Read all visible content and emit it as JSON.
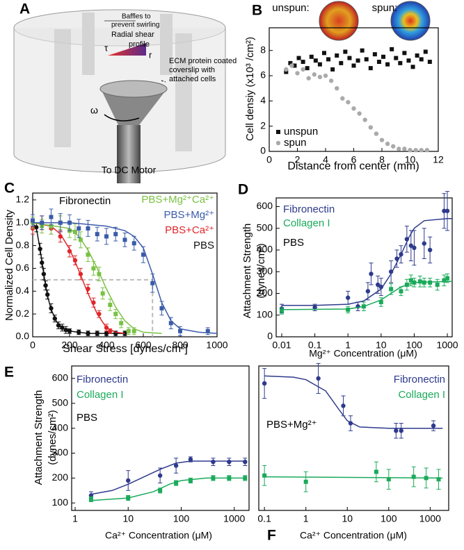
{
  "diagram": {
    "panel": "A",
    "baffles": [
      "Baffles to",
      "prevent swirling"
    ],
    "shear_profile": [
      "Radial shear",
      "profile"
    ],
    "tau": "τ",
    "r": "r",
    "ecm_label": [
      "ECM protein coated",
      "coverslip with",
      "attached cells"
    ],
    "omega": "ω",
    "motor": "To DC Motor"
  },
  "chart_data": [
    {
      "panel": "B",
      "type": "scatter",
      "xlabel": "Distance from center (mm)",
      "ylabel": "Cell densiy (x10³ /cm²)",
      "annotations": [
        "unspun:",
        "spun:"
      ],
      "xlim": [
        0,
        12
      ],
      "xticks": [
        0,
        2,
        4,
        6,
        8,
        10,
        12
      ],
      "ylim": [
        0,
        9.8
      ],
      "yticks": [
        0,
        2,
        4,
        6,
        8
      ],
      "series": [
        {
          "name": "unspun",
          "color": "#111111",
          "marker": "square",
          "x": [
            1.2,
            1.5,
            1.8,
            2.1,
            2.4,
            2.7,
            3.0,
            3.3,
            3.6,
            3.9,
            4.2,
            4.5,
            4.8,
            5.1,
            5.4,
            5.7,
            6.0,
            6.3,
            6.6,
            6.9,
            7.2,
            7.5,
            7.8,
            8.1,
            8.4,
            8.7,
            9.0,
            9.3,
            9.6,
            9.9,
            10.2,
            10.5,
            10.8,
            11.1,
            11.4
          ],
          "values": [
            6.3,
            7.0,
            6.8,
            7.4,
            7.1,
            6.6,
            7.5,
            7.2,
            6.9,
            7.8,
            7.3,
            6.5,
            7.6,
            7.0,
            7.9,
            7.4,
            6.8,
            7.2,
            8.0,
            7.3,
            6.6,
            7.7,
            7.1,
            7.5,
            6.9,
            8.1,
            7.4,
            7.0,
            7.8,
            7.2,
            6.7,
            7.6,
            7.3,
            7.9,
            7.1
          ]
        },
        {
          "name": "spun",
          "color": "#aaaaaa",
          "marker": "circle",
          "x": [
            1.2,
            1.6,
            2.0,
            2.4,
            2.8,
            3.2,
            3.6,
            4.0,
            4.4,
            4.8,
            5.2,
            5.6,
            6.0,
            6.4,
            6.8,
            7.2,
            7.6,
            8.0,
            8.4,
            8.8,
            9.2,
            9.6,
            10.0,
            10.4,
            10.8,
            11.2
          ],
          "values": [
            6.5,
            6.8,
            6.2,
            6.5,
            5.8,
            6.1,
            5.9,
            6.0,
            5.6,
            5.0,
            4.2,
            3.9,
            3.4,
            3.0,
            2.5,
            1.9,
            1.4,
            0.9,
            0.6,
            0.4,
            0.2,
            0.2,
            0.1,
            0.1,
            0.1,
            0.1
          ]
        }
      ]
    },
    {
      "panel": "C",
      "type": "scatter",
      "xlabel": "Shear Stress [dynes/cm²]",
      "ylabel": "Normalized Cell Density",
      "annotations": [
        "Fibronectin"
      ],
      "xlim": [
        0,
        1000
      ],
      "xticks": [
        0,
        200,
        400,
        600,
        800,
        1000
      ],
      "ylim": [
        0,
        1.26
      ],
      "yticks": [
        {
          "value": 0,
          "label": "0.0"
        },
        0.2,
        0.4,
        0.6,
        0.8,
        {
          "value": 1,
          "label": "1.0"
        },
        1.2
      ],
      "guide": {
        "x": 650,
        "y": 0.5
      },
      "series": [
        {
          "name": "PBS",
          "color": "#111111",
          "marker": "circle",
          "x": [
            0,
            20,
            40,
            50,
            60,
            70,
            80,
            100,
            120,
            140,
            160,
            180,
            200,
            250,
            300,
            350,
            400,
            450,
            500
          ],
          "values": [
            1.0,
            0.96,
            0.77,
            0.65,
            0.55,
            0.45,
            0.37,
            0.25,
            0.16,
            0.1,
            0.08,
            0.06,
            0.05,
            0.04,
            0.03,
            0.03,
            0.03,
            0.03,
            0.03
          ],
          "errors": [
            0.03,
            0.04,
            0.05,
            0.04,
            0.05,
            0.04,
            0.04,
            0.04,
            0.03,
            0.03,
            0.03,
            0.03,
            0.02,
            0.02,
            0.02,
            0.02,
            0.02,
            0.02,
            0.02
          ],
          "fit": {
            "x": [
              0,
              20,
              40,
              60,
              80,
              100,
              130,
              160,
              200,
              300,
              500
            ],
            "values": [
              1.0,
              0.95,
              0.77,
              0.55,
              0.36,
              0.24,
              0.13,
              0.08,
              0.05,
              0.03,
              0.03
            ]
          }
        },
        {
          "name": "PBS+Ca²⁺",
          "color": "#e0262a",
          "marker": "circle",
          "x": [
            0,
            50,
            100,
            150,
            200,
            230,
            260,
            300,
            330,
            360,
            400,
            420
          ],
          "values": [
            0.95,
            1.0,
            0.95,
            0.88,
            0.75,
            0.67,
            0.55,
            0.42,
            0.3,
            0.2,
            0.08,
            0.05
          ],
          "errors": [
            0.05,
            0.06,
            0.05,
            0.05,
            0.05,
            0.04,
            0.05,
            0.04,
            0.04,
            0.03,
            0.03,
            0.02
          ],
          "fit": {
            "x": [
              0,
              100,
              150,
              200,
              250,
              300,
              350,
              400,
              450,
              500
            ],
            "values": [
              1.0,
              0.97,
              0.9,
              0.77,
              0.58,
              0.38,
              0.2,
              0.08,
              0.04,
              0.03
            ]
          }
        },
        {
          "name": "PBS+Mg²⁺Ca²⁺",
          "color": "#7ac143",
          "marker": "square",
          "x": [
            0,
            50,
            100,
            150,
            200,
            230,
            260,
            300,
            330,
            360,
            380,
            420,
            450,
            480,
            520,
            550
          ],
          "values": [
            1.0,
            0.97,
            0.97,
            1.0,
            0.93,
            0.92,
            0.85,
            0.72,
            0.6,
            0.55,
            0.38,
            0.28,
            0.2,
            0.12,
            0.05,
            0.05
          ],
          "errors": [
            0.05,
            0.06,
            0.07,
            0.06,
            0.06,
            0.07,
            0.07,
            0.06,
            0.06,
            0.06,
            0.05,
            0.05,
            0.04,
            0.04,
            0.03,
            0.03
          ],
          "fit": {
            "x": [
              0,
              200,
              250,
              300,
              350,
              400,
              450,
              500,
              550,
              600,
              700
            ],
            "values": [
              1.0,
              0.95,
              0.88,
              0.76,
              0.6,
              0.42,
              0.26,
              0.14,
              0.07,
              0.04,
              0.03
            ]
          }
        },
        {
          "name": "PBS+Mg²⁺",
          "color": "#3a5ba9",
          "marker": "square",
          "x": [
            0,
            50,
            100,
            150,
            200,
            250,
            300,
            350,
            400,
            450,
            500,
            550,
            600,
            650,
            700,
            750,
            800,
            950
          ],
          "values": [
            1.02,
            1.0,
            1.05,
            1.0,
            1.0,
            0.95,
            0.95,
            0.9,
            0.88,
            0.9,
            0.85,
            0.82,
            0.72,
            0.47,
            0.25,
            0.12,
            0.05,
            0.05
          ],
          "errors": [
            0.05,
            0.06,
            0.07,
            0.08,
            0.07,
            0.08,
            0.07,
            0.06,
            0.07,
            0.06,
            0.06,
            0.06,
            0.07,
            0.08,
            0.06,
            0.05,
            0.04,
            0.03
          ],
          "fit": {
            "x": [
              0,
              200,
              400,
              500,
              550,
              600,
              650,
              700,
              750,
              800,
              900,
              1000
            ],
            "values": [
              1.0,
              1.0,
              0.97,
              0.93,
              0.88,
              0.78,
              0.55,
              0.3,
              0.14,
              0.07,
              0.04,
              0.03
            ]
          }
        }
      ]
    },
    {
      "panel": "D",
      "type": "scatter",
      "xscale": "log",
      "xlabel": "Mg²⁺ Concentration (μM)",
      "ylabel": [
        "Attachment Strength",
        "(dynes/cm²)"
      ],
      "annotations": [
        "PBS"
      ],
      "xlim": [
        0.0068,
        1400
      ],
      "xticks": [
        0.01,
        0.1,
        1,
        10,
        100,
        1000
      ],
      "ylim": [
        0,
        640
      ],
      "yticks": [
        0,
        100,
        200,
        300,
        400,
        500,
        600
      ],
      "series": [
        {
          "name": "Fibronectin",
          "color": "#2e3a8c",
          "marker": "circle",
          "x": [
            0.01,
            0.1,
            1,
            2,
            4,
            5,
            8,
            10,
            20,
            30,
            40,
            60,
            80,
            100,
            200,
            300,
            800,
            1000
          ],
          "values": [
            130,
            135,
            180,
            140,
            210,
            290,
            240,
            230,
            300,
            360,
            380,
            450,
            420,
            410,
            430,
            400,
            580,
            580
          ],
          "errors": [
            20,
            15,
            30,
            20,
            40,
            50,
            40,
            40,
            50,
            40,
            40,
            60,
            70,
            80,
            70,
            60,
            80,
            90
          ],
          "fit": {
            "x": [
              0.01,
              0.1,
              1,
              3,
              10,
              20,
              40,
              70,
              100,
              200,
              1000,
              1400
            ],
            "values": [
              145,
              145,
              150,
              165,
              220,
              290,
              380,
              460,
              500,
              535,
              545,
              545
            ]
          }
        },
        {
          "name": "Collagen I",
          "color": "#1aaa5a",
          "marker": "square",
          "x": [
            0.01,
            1,
            3,
            10,
            20,
            40,
            60,
            80,
            100,
            150,
            200,
            300,
            500,
            800,
            1000
          ],
          "values": [
            120,
            125,
            140,
            160,
            220,
            210,
            240,
            260,
            250,
            255,
            250,
            250,
            240,
            260,
            270
          ],
          "errors": [
            15,
            15,
            20,
            20,
            25,
            20,
            25,
            25,
            20,
            25,
            20,
            20,
            25,
            25,
            20
          ],
          "fit": {
            "x": [
              0.01,
              1,
              3,
              10,
              20,
              40,
              100,
              1000,
              1400
            ],
            "values": [
              125,
              128,
              140,
              170,
              200,
              230,
              250,
              255,
              255
            ]
          }
        }
      ]
    },
    {
      "panel": "E",
      "type": "scatter",
      "xscale": "log",
      "xlabel": "Ca²⁺ Concentration (μM)",
      "ylabel": [
        "Attachment Strength",
        "(dynes/cm²)"
      ],
      "annotations": [
        "PBS"
      ],
      "xlim": [
        0.86,
        1900
      ],
      "xticks": [
        1,
        10,
        100,
        1000
      ],
      "ylim": [
        70,
        650
      ],
      "yticks": [
        100,
        200,
        300,
        400,
        500,
        600
      ],
      "series": [
        {
          "name": "Fibronectin",
          "color": "#2e3a8c",
          "marker": "circle",
          "x": [
            2,
            10,
            40,
            80,
            150,
            400,
            800,
            1600
          ],
          "values": [
            130,
            190,
            210,
            250,
            275,
            265,
            265,
            265
          ],
          "errors": [
            15,
            40,
            30,
            30,
            10,
            15,
            15,
            15
          ],
          "fit": {
            "x": [
              2,
              5,
              10,
              20,
              40,
              80,
              150,
              400,
              1600
            ],
            "values": [
              135,
              150,
              175,
              205,
              235,
              260,
              268,
              268,
              268
            ]
          }
        },
        {
          "name": "Collagen I",
          "color": "#1aaa5a",
          "marker": "square",
          "x": [
            2,
            10,
            40,
            80,
            150,
            400,
            800,
            1600
          ],
          "values": [
            115,
            120,
            150,
            180,
            190,
            200,
            200,
            200
          ],
          "errors": [
            10,
            10,
            10,
            10,
            10,
            10,
            10,
            10
          ],
          "fit": {
            "x": [
              2,
              10,
              30,
              60,
              100,
              300,
              1600
            ],
            "values": [
              110,
              120,
              145,
              175,
              190,
              200,
              200
            ]
          }
        }
      ]
    },
    {
      "panel": "F",
      "type": "scatter",
      "xscale": "log",
      "xlabel": "Ca²⁺ Concentration (μM)",
      "annotations": [
        "PBS+Mg²⁺"
      ],
      "xlim": [
        0.073,
        2800
      ],
      "xticks": [
        0.1,
        1,
        10,
        100,
        1000
      ],
      "ylim": [
        70,
        650
      ],
      "series": [
        {
          "name": "Fibronectin",
          "color": "#2e3a8c",
          "marker": "circle",
          "x": [
            0.1,
            2,
            8,
            12,
            150,
            200,
            1200
          ],
          "values": [
            580,
            600,
            490,
            420,
            390,
            390,
            410
          ],
          "errors": [
            60,
            60,
            40,
            30,
            30,
            30,
            20
          ],
          "fit": {
            "x": [
              0.1,
              0.5,
              1,
              3,
              6,
              10,
              20,
              100,
              2000
            ],
            "values": [
              610,
              605,
              595,
              550,
              480,
              430,
              405,
              400,
              400
            ]
          }
        },
        {
          "name": "Collagen I",
          "color": "#1aaa5a",
          "marker": "square",
          "x": [
            0.1,
            1,
            50,
            100,
            400,
            800,
            1600
          ],
          "values": [
            210,
            185,
            225,
            195,
            205,
            200,
            195
          ],
          "errors": [
            40,
            40,
            40,
            40,
            40,
            40,
            40
          ],
          "fit": {
            "x": [
              0.1,
              2000
            ],
            "values": [
              205,
              200
            ]
          }
        }
      ]
    }
  ]
}
